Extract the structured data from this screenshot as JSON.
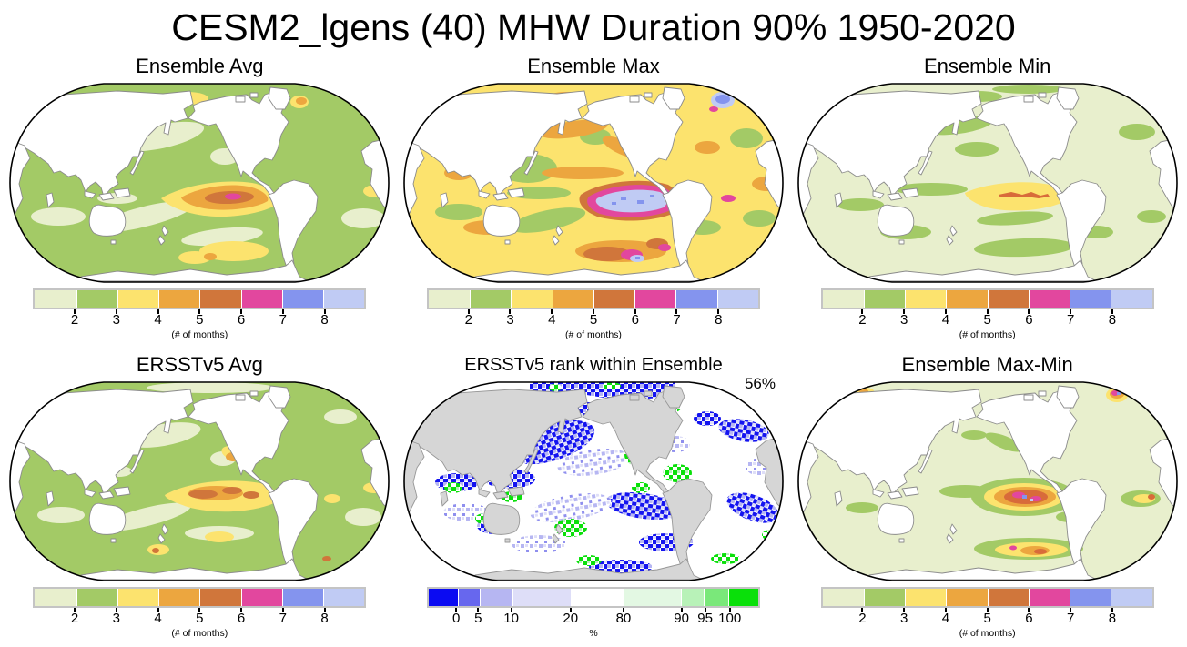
{
  "title": "CESM2_lgens (40) MHW Duration 90% 1950-2020",
  "panels": [
    {
      "id": "ensemble-avg",
      "title": "Ensemble Avg",
      "colorbar": "months"
    },
    {
      "id": "ensemble-max",
      "title": "Ensemble Max",
      "colorbar": "months"
    },
    {
      "id": "ensemble-min",
      "title": "Ensemble Min",
      "colorbar": "months"
    },
    {
      "id": "ersstv5-avg",
      "title": "ERSSTv5 Avg",
      "colorbar": "months"
    },
    {
      "id": "ersstv5-rank",
      "title": "ERSSTv5 rank within Ensemble",
      "colorbar": "percent",
      "annotation": "56%"
    },
    {
      "id": "ensemble-max-min",
      "title": "Ensemble Max-Min",
      "colorbar": "months"
    }
  ],
  "colorbars": {
    "months": {
      "label": "(# of months)",
      "ticks": [
        "2",
        "3",
        "4",
        "5",
        "6",
        "7",
        "8"
      ],
      "colors": [
        "#e8efcd",
        "#a3ca66",
        "#fce36e",
        "#eca63f",
        "#d0763b",
        "#e2479e",
        "#8494ee",
        "#c0cbf4"
      ],
      "widths": [
        12.5,
        12.5,
        12.5,
        12.5,
        12.5,
        12.5,
        12.5,
        12.5
      ]
    },
    "percent": {
      "label": "%",
      "ticks": [
        "0",
        "5",
        "10",
        "20",
        "80",
        "90",
        "95",
        "100"
      ],
      "colors": [
        "#0b0bf2",
        "#6767ee",
        "#b6b6f2",
        "#dedef8",
        "#ffffff",
        "#e3f8e3",
        "#b8f2b8",
        "#7ae87a",
        "#0ae00a"
      ],
      "widths": [
        8.8,
        6.6,
        9.9,
        17.8,
        15.9,
        17.4,
        7.1,
        7.4,
        9.1
      ]
    }
  },
  "chart_data": {
    "type": "heatmap",
    "subtype": "global-map-grid",
    "title": "CESM2_lgens (40) MHW Duration 90% 1950-2020",
    "layout": {
      "rows": 2,
      "cols": 3,
      "projection": "robinson",
      "center": "pacific"
    },
    "colorbar_months": {
      "tick_values": [
        2,
        3,
        4,
        5,
        6,
        7,
        8
      ],
      "label": "(# of months)",
      "colors": [
        "#e8efcd",
        "#a3ca66",
        "#fce36e",
        "#eca63f",
        "#d0763b",
        "#e2479e",
        "#8494ee",
        "#c0cbf4"
      ]
    },
    "colorbar_percent": {
      "tick_values": [
        0,
        5,
        10,
        20,
        80,
        90,
        95,
        100
      ],
      "label": "%",
      "colors": [
        "#0b0bf2",
        "#6767ee",
        "#b6b6f2",
        "#dedef8",
        "#ffffff",
        "#e3f8e3",
        "#b8f2b8",
        "#7ae87a",
        "#0ae00a"
      ]
    },
    "panels": [
      {
        "title": "Ensemble Avg",
        "units": "# of months",
        "summary": "Ocean mostly 2-3 months; 4-6 month tongue in eastern equatorial Pacific with small >6 magenta core"
      },
      {
        "title": "Ensemble Max",
        "units": "# of months",
        "summary": "Widespread 3-5 months; eastern equatorial Pacific core exceeds 8 months (light blue) ringed by 6-7 months; high values also in Southern Ocean and subpolar North Atlantic"
      },
      {
        "title": "Ensemble Min",
        "units": "# of months",
        "summary": "Mostly below 2 months; 3-4 month tongue with narrow 5-6 month stripe in eastern equatorial Pacific"
      },
      {
        "title": "ERSSTv5 Avg",
        "units": "# of months",
        "summary": "Similar to Ensemble Avg; patchy 4-6 month band in eastern equatorial Pacific, no magenta core"
      },
      {
        "title": "ERSSTv5 rank within Ensemble",
        "units": "%",
        "annotation": "56%",
        "summary": "Scattered low-rank (blue, <20%) clusters across mid-latitude oceans and high-rank (green, >80%) patches near eastern boundaries and Southern Ocean; gray land"
      },
      {
        "title": "Ensemble Max-Min",
        "units": "# of months",
        "summary": "Spread under 2 months over most oceans; spread of 5->8 months in eastern equatorial Pacific (blue specks) and parts of the Southern Ocean; small hotspot near Svalbard"
      }
    ]
  }
}
